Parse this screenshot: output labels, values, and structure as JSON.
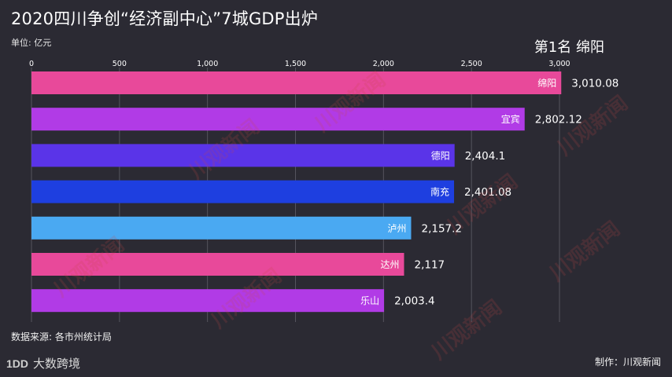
{
  "title": "2020四川争创“经济副中心”7城GDP出炉",
  "unit_label": "单位: 亿元",
  "rank_label": "第1名 绵阳",
  "source": "数据来源: 各市州统计局",
  "logo_text": "大数跨境",
  "logo_mark": "1DD",
  "credit": "制作：川观新闻",
  "watermark": "川观新闻",
  "chart_data": {
    "type": "bar",
    "orientation": "horizontal",
    "title": "2020四川争创“经济副中心”7城GDP出炉",
    "xlim": [
      0,
      3000
    ],
    "ticks": [
      0,
      500,
      1000,
      1500,
      2000,
      2500,
      3000
    ],
    "tick_labels": [
      "0",
      "500",
      "1,000",
      "1,500",
      "2,000",
      "2,500",
      "3,000"
    ],
    "grid": true,
    "categories": [
      "绵阳",
      "宜宾",
      "德阳",
      "南充",
      "泸州",
      "达州",
      "乐山"
    ],
    "values": [
      3010.08,
      2802.12,
      2404.1,
      2401.08,
      2157.2,
      2117,
      2003.4
    ],
    "value_labels": [
      "3,010.08",
      "2,802.12",
      "2,404.1",
      "2,401.08",
      "2,157.2",
      "2,117",
      "2,003.4"
    ],
    "colors": [
      "#e8499a",
      "#b13be6",
      "#5a34e8",
      "#1e3fe0",
      "#4aa9f2",
      "#e8499a",
      "#b13be6"
    ]
  }
}
